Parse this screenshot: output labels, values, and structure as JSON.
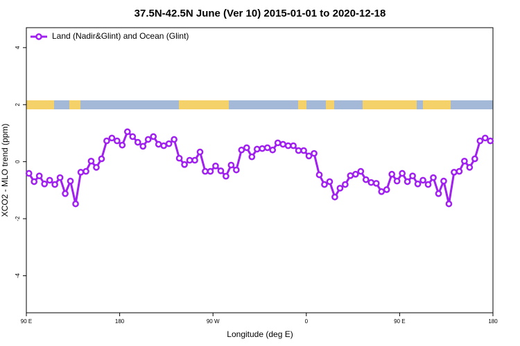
{
  "chart_data": {
    "type": "line",
    "title": "37.5N-42.5N June (Ver 10)   2015-01-01 to 2020-12-18",
    "x_label": "Longitude (deg E)",
    "y_label": "XCO2 - MLO trend (ppm)",
    "xlim": [
      90,
      540
    ],
    "ylim": [
      -5.3,
      4.7
    ],
    "xticks": [
      {
        "value": 90,
        "label": "90 E"
      },
      180,
      {
        "value": 270,
        "label": "90 W"
      },
      {
        "value": 360,
        "label": "0"
      },
      {
        "value": 450,
        "label": "90 E"
      },
      {
        "value": 540,
        "label": "180"
      }
    ],
    "yticks": [
      -4,
      -2,
      0,
      2,
      4
    ],
    "legend": "top-left",
    "x": [
      92.5,
      97.5,
      102.5,
      107.5,
      112.5,
      117.5,
      122.5,
      127.5,
      132.5,
      137.5,
      142.5,
      147.5,
      152.5,
      157.5,
      162.5,
      167.5,
      172.5,
      177.5,
      182.5,
      187.5,
      192.5,
      197.5,
      202.5,
      207.5,
      212.5,
      217.5,
      222.5,
      227.5,
      232.5,
      237.5,
      242.5,
      247.5,
      252.5,
      257.5,
      262.5,
      267.5,
      272.5,
      277.5,
      282.5,
      287.5,
      292.5,
      297.5,
      302.5,
      307.5,
      312.5,
      317.5,
      322.5,
      327.5,
      332.5,
      337.5,
      342.5,
      347.5,
      352.5,
      357.5,
      362.5,
      367.5,
      372.5,
      377.5,
      382.5,
      387.5,
      392.5,
      397.5,
      402.5,
      407.5,
      412.5,
      417.5,
      422.5,
      427.5,
      432.5,
      437.5,
      442.5,
      447.5,
      452.5,
      457.5,
      462.5,
      467.5,
      472.5,
      477.5,
      482.5,
      487.5,
      492.5,
      497.5,
      502.5,
      507.5,
      512.5,
      517.5,
      522.5,
      527.5,
      532.5,
      537.5
    ],
    "series": [
      {
        "name": "Land (Nadir&Glint) and Ocean (Glint)",
        "color": "#a020f0",
        "values": [
          -0.41,
          -0.7,
          -0.5,
          -0.78,
          -0.65,
          -0.8,
          -0.56,
          -1.12,
          -0.68,
          -1.48,
          -0.37,
          -0.34,
          0.02,
          -0.2,
          0.1,
          0.73,
          0.83,
          0.73,
          0.58,
          1.05,
          0.88,
          0.68,
          0.54,
          0.78,
          0.88,
          0.61,
          0.56,
          0.63,
          0.78,
          0.12,
          -0.1,
          0.05,
          0.05,
          0.34,
          -0.34,
          -0.34,
          -0.15,
          -0.32,
          -0.51,
          -0.12,
          -0.29,
          0.41,
          0.49,
          0.17,
          0.44,
          0.46,
          0.49,
          0.41,
          0.66,
          0.61,
          0.56,
          0.56,
          0.39,
          0.39,
          0.2,
          0.29,
          -0.46,
          -0.8,
          -0.7,
          -1.24,
          -0.93,
          -0.8,
          -0.49,
          -0.44,
          -0.34,
          -0.63,
          -0.73,
          -0.76,
          -1.05,
          -0.98,
          -0.44,
          -0.68,
          -0.41,
          -0.7,
          -0.5,
          -0.78,
          -0.65,
          -0.8,
          -0.56,
          -1.12,
          -0.68,
          -1.48,
          -0.37,
          -0.34,
          0.02,
          -0.2,
          0.1,
          0.73,
          0.83,
          0.73
        ]
      }
    ]
  }
}
